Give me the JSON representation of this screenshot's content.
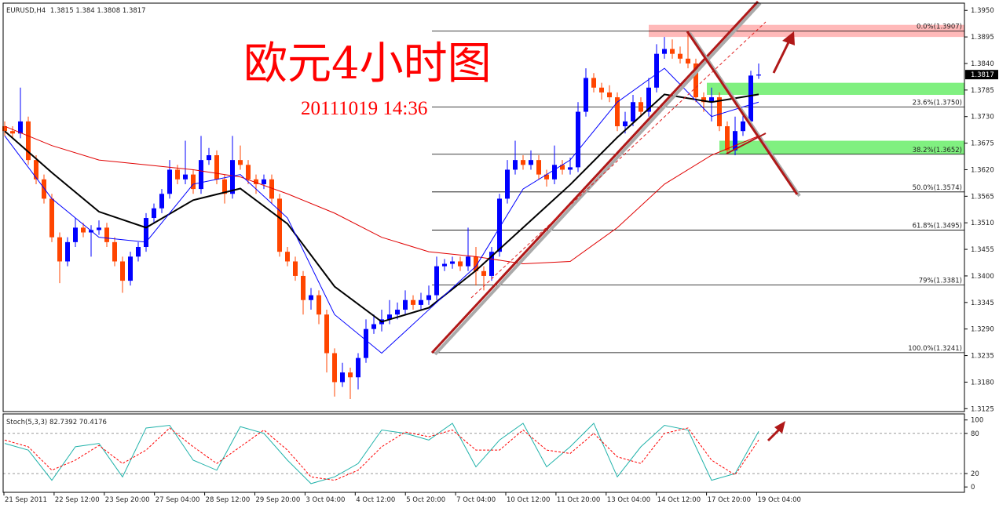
{
  "chart_data": [
    {
      "type": "candlestick",
      "symbol": "EURUSD,H4",
      "title": "欧元4小时图",
      "subtitle": "20111019 14:36",
      "up_color": "#0000ff",
      "down_color": "#ff4500",
      "xlim": [
        -0.2,
        122.2
      ],
      "ylim": [
        1.3119,
        1.3965
      ],
      "yticks": [
        {
          "value": 1.395,
          "label": "1.3950"
        },
        1.3895,
        {
          "value": 1.384,
          "label": "1.3840"
        },
        1.3785,
        {
          "value": 1.373,
          "label": "1.3730"
        },
        1.3675,
        {
          "value": 1.362,
          "label": "1.3620"
        },
        1.3565,
        {
          "value": 1.351,
          "label": "1.3510"
        },
        1.3455,
        {
          "value": 1.34,
          "label": "1.3400"
        },
        1.3345,
        {
          "value": 1.329,
          "label": "1.3290"
        },
        1.3235,
        {
          "value": 1.318,
          "label": "1.3180"
        },
        1.3125
      ],
      "x_labels": [
        "21 Sep 2011",
        "22 Sep 12:00",
        "23 Sep 20:00",
        "27 Sep 04:00",
        "28 Sep 12:00",
        "29 Sep 20:00",
        "3 Oct 04:00",
        "4 Oct 12:00",
        "5 Oct 20:00",
        "7 Oct 04:00",
        "10 Oct 12:00",
        "11 Oct 20:00",
        "13 Oct 04:00",
        "14 Oct 12:00",
        "17 Oct 20:00",
        "19 Oct 04:00"
      ],
      "open": [
        1.371,
        1.37,
        1.3695,
        1.372,
        1.364,
        1.36,
        1.356,
        1.348,
        1.343,
        1.347,
        1.35,
        1.349,
        1.3495,
        1.35,
        1.347,
        1.343,
        1.339,
        1.344,
        1.346,
        1.352,
        1.354,
        1.357,
        1.362,
        1.36,
        1.361,
        1.358,
        1.364,
        1.365,
        1.36,
        1.357,
        1.364,
        1.363,
        1.36,
        1.359,
        1.36,
        1.356,
        1.345,
        1.343,
        1.34,
        1.335,
        1.336,
        1.332,
        1.324,
        1.318,
        1.32,
        1.319,
        1.323,
        1.329,
        1.33,
        1.331,
        1.332,
        1.333,
        1.335,
        1.334,
        1.335,
        1.336,
        1.342,
        1.3425,
        1.343,
        1.342,
        1.344,
        1.341,
        1.34,
        1.345,
        1.356,
        1.362,
        1.364,
        1.363,
        1.364,
        1.361,
        1.36,
        1.363,
        1.362,
        1.3625,
        1.374,
        1.381,
        1.379,
        1.378,
        1.377,
        1.371,
        1.372,
        1.376,
        1.374,
        1.379,
        1.386,
        1.387,
        1.386,
        1.385,
        1.384,
        1.377,
        1.376,
        1.377,
        1.371,
        1.366,
        1.37,
        1.372,
        1.3815
      ],
      "high": [
        1.372,
        1.371,
        1.379,
        1.373,
        1.365,
        1.361,
        1.357,
        1.349,
        1.348,
        1.352,
        1.351,
        1.3505,
        1.3515,
        1.351,
        1.348,
        1.344,
        1.345,
        1.347,
        1.353,
        1.355,
        1.358,
        1.364,
        1.363,
        1.368,
        1.362,
        1.369,
        1.3665,
        1.366,
        1.361,
        1.369,
        1.367,
        1.364,
        1.361,
        1.361,
        1.361,
        1.357,
        1.346,
        1.344,
        1.341,
        1.3375,
        1.337,
        1.333,
        1.325,
        1.322,
        1.321,
        1.324,
        1.331,
        1.332,
        1.333,
        1.335,
        1.3345,
        1.337,
        1.336,
        1.3365,
        1.338,
        1.344,
        1.3435,
        1.344,
        1.344,
        1.35,
        1.346,
        1.342,
        1.346,
        1.357,
        1.364,
        1.368,
        1.365,
        1.366,
        1.365,
        1.362,
        1.367,
        1.364,
        1.3645,
        1.376,
        1.383,
        1.382,
        1.38,
        1.3795,
        1.378,
        1.374,
        1.3775,
        1.377,
        1.381,
        1.388,
        1.3895,
        1.389,
        1.3875,
        1.3907,
        1.385,
        1.378,
        1.379,
        1.378,
        1.372,
        1.373,
        1.374,
        1.3825,
        1.384
      ],
      "low": [
        1.369,
        1.3685,
        1.3685,
        1.363,
        1.359,
        1.355,
        1.347,
        1.3385,
        1.342,
        1.346,
        1.348,
        1.344,
        1.3485,
        1.346,
        1.342,
        1.3365,
        1.338,
        1.343,
        1.345,
        1.351,
        1.353,
        1.356,
        1.359,
        1.359,
        1.357,
        1.357,
        1.363,
        1.359,
        1.355,
        1.356,
        1.362,
        1.359,
        1.357,
        1.358,
        1.355,
        1.344,
        1.342,
        1.339,
        1.332,
        1.333,
        1.33,
        1.32,
        1.315,
        1.317,
        1.3145,
        1.3165,
        1.322,
        1.328,
        1.3285,
        1.33,
        1.331,
        1.332,
        1.333,
        1.333,
        1.334,
        1.335,
        1.341,
        1.3415,
        1.341,
        1.341,
        1.338,
        1.337,
        1.339,
        1.344,
        1.355,
        1.361,
        1.362,
        1.362,
        1.36,
        1.3585,
        1.359,
        1.361,
        1.361,
        1.3615,
        1.373,
        1.378,
        1.3765,
        1.376,
        1.37,
        1.3695,
        1.371,
        1.373,
        1.373,
        1.378,
        1.385,
        1.385,
        1.384,
        1.383,
        1.376,
        1.374,
        1.372,
        1.37,
        1.3652,
        1.365,
        1.369,
        1.371,
        1.3808
      ],
      "close": [
        1.37,
        1.3695,
        1.372,
        1.364,
        1.36,
        1.356,
        1.348,
        1.343,
        1.347,
        1.35,
        1.349,
        1.3495,
        1.35,
        1.347,
        1.343,
        1.339,
        1.344,
        1.346,
        1.352,
        1.354,
        1.357,
        1.362,
        1.36,
        1.361,
        1.358,
        1.364,
        1.365,
        1.36,
        1.357,
        1.364,
        1.363,
        1.36,
        1.359,
        1.36,
        1.356,
        1.345,
        1.343,
        1.34,
        1.335,
        1.336,
        1.332,
        1.324,
        1.318,
        1.32,
        1.319,
        1.323,
        1.329,
        1.33,
        1.331,
        1.332,
        1.333,
        1.335,
        1.334,
        1.335,
        1.336,
        1.342,
        1.3425,
        1.343,
        1.342,
        1.344,
        1.341,
        1.34,
        1.345,
        1.356,
        1.362,
        1.364,
        1.363,
        1.364,
        1.361,
        1.36,
        1.363,
        1.362,
        1.3625,
        1.374,
        1.381,
        1.379,
        1.378,
        1.377,
        1.371,
        1.372,
        1.376,
        1.374,
        1.379,
        1.386,
        1.387,
        1.386,
        1.385,
        1.384,
        1.377,
        1.376,
        1.377,
        1.371,
        1.366,
        1.37,
        1.372,
        1.3815,
        1.3817
      ],
      "ma_x": [
        0,
        6,
        12,
        18,
        24,
        30,
        36,
        42,
        48,
        54,
        60,
        66,
        72,
        78,
        84,
        90,
        96
      ],
      "moving_averages": [
        {
          "color": "#e00000",
          "values": [
            1.371,
            1.367,
            1.364,
            1.363,
            1.362,
            1.3605,
            1.357,
            1.353,
            1.348,
            1.345,
            1.344,
            1.3425,
            1.343,
            1.35,
            1.359,
            1.365,
            1.369
          ]
        },
        {
          "color": "#000000",
          "values": [
            1.37,
            1.3614,
            1.3533,
            1.35,
            1.3557,
            1.3581,
            1.3508,
            1.3378,
            1.3305,
            1.3334,
            1.3411,
            1.35,
            1.3589,
            1.3687,
            1.3776,
            1.376,
            1.3776
          ]
        },
        {
          "color": "#0000ff",
          "values": [
            1.369,
            1.356,
            1.348,
            1.347,
            1.359,
            1.361,
            1.352,
            1.332,
            1.324,
            1.333,
            1.342,
            1.358,
            1.364,
            1.376,
            1.383,
            1.373,
            1.376
          ]
        }
      ],
      "zones": [
        {
          "color": "#ffb9b9",
          "ylim": [
            1.3895,
            1.392
          ]
        },
        {
          "color": "#80f080",
          "ylim": [
            1.3775,
            1.38
          ]
        },
        {
          "color": "#80f080",
          "ylim": [
            1.3652,
            1.368
          ]
        }
      ],
      "fib_levels": [
        {
          "value": 1.3907,
          "label": "0.0%(1.3907)"
        },
        {
          "value": 1.375,
          "label": "23.6%(1.3750)"
        },
        {
          "value": 1.3652,
          "label": "38.2%(1.3652)"
        },
        {
          "value": 1.3574,
          "label": "50.0%(1.3574)"
        },
        {
          "value": 1.3495,
          "label": "61.8%(1.3495)"
        },
        {
          "value": 1.3381,
          "label": "79%(1.3381)"
        },
        {
          "value": 1.3241,
          "label": "100.0%(1.3241)"
        }
      ]
    },
    {
      "type": "line",
      "indicator_label": "Stoch(5,3,3) 82.7392 70.4176",
      "xlim": [
        -0.2,
        122.2
      ],
      "ylim": [
        -8,
        109
      ],
      "yticks": [
        100,
        80,
        20,
        0
      ],
      "x": [
        0,
        3,
        6,
        9,
        12,
        15,
        18,
        21,
        24,
        27,
        30,
        33,
        36,
        39,
        42,
        45,
        48,
        51,
        54,
        57,
        60,
        63,
        66,
        69,
        72,
        75,
        78,
        81,
        84,
        87,
        90,
        93,
        96
      ],
      "series": [
        {
          "color": "#20b2aa",
          "values": [
            65,
            55,
            10,
            60,
            65,
            15,
            88,
            92,
            40,
            25,
            90,
            80,
            40,
            5,
            15,
            35,
            85,
            80,
            70,
            95,
            30,
            70,
            95,
            30,
            60,
            95,
            15,
            60,
            92,
            85,
            10,
            20,
            83
          ]
        },
        {
          "color": "#ff0000",
          "dashed": true,
          "values": [
            70,
            60,
            25,
            40,
            62,
            35,
            55,
            88,
            60,
            35,
            60,
            85,
            55,
            15,
            10,
            25,
            60,
            82,
            75,
            85,
            55,
            55,
            85,
            55,
            50,
            80,
            45,
            35,
            80,
            88,
            40,
            18,
            70
          ]
        }
      ]
    }
  ]
}
